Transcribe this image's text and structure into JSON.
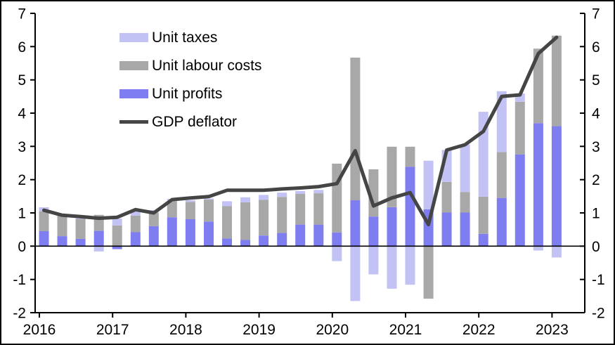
{
  "colors": {
    "unit_taxes": "#c2c2f4",
    "unit_labour_costs": "#a8a8a8",
    "unit_profits": "#7e7ef0",
    "gdp_deflator": "#454545",
    "axis": "#000000"
  },
  "legend": {
    "items": [
      {
        "label": "Unit taxes",
        "series": "unit_taxes",
        "type": "bar"
      },
      {
        "label": "Unit labour costs",
        "series": "unit_labour_costs",
        "type": "bar"
      },
      {
        "label": "Unit profits",
        "series": "unit_profits",
        "type": "bar"
      },
      {
        "label": "GDP deflator",
        "series": "gdp_deflator",
        "type": "line"
      }
    ]
  },
  "chart_data": {
    "type": "bar",
    "subtype": "stacked-bars-with-line",
    "categories": [
      "2016Q1",
      "2016Q2",
      "2016Q3",
      "2016Q4",
      "2017Q1",
      "2017Q2",
      "2017Q3",
      "2017Q4",
      "2018Q1",
      "2018Q2",
      "2018Q3",
      "2018Q4",
      "2019Q1",
      "2019Q2",
      "2019Q3",
      "2019Q4",
      "2020Q1",
      "2020Q2",
      "2020Q3",
      "2020Q4",
      "2021Q1",
      "2021Q2",
      "2021Q3",
      "2021Q4",
      "2022Q1",
      "2022Q2",
      "2022Q3",
      "2022Q4",
      "2023Q1"
    ],
    "series": [
      {
        "key": "unit_profits",
        "name": "Unit profits",
        "values": [
          0.45,
          0.3,
          0.22,
          0.46,
          -0.09,
          0.42,
          0.6,
          0.87,
          0.81,
          0.74,
          0.23,
          0.19,
          0.32,
          0.4,
          0.65,
          0.65,
          0.41,
          1.38,
          0.89,
          1.17,
          2.39,
          1.11,
          1.01,
          1.01,
          0.37,
          1.45,
          2.76,
          3.7,
          3.61
        ]
      },
      {
        "key": "unit_labour_costs",
        "name": "Unit labour costs",
        "values": [
          0.6,
          0.63,
          0.6,
          0.48,
          0.62,
          0.5,
          0.4,
          0.48,
          0.52,
          0.66,
          0.97,
          1.13,
          1.07,
          1.08,
          0.92,
          0.94,
          2.07,
          4.29,
          1.42,
          1.82,
          0.6,
          -1.58,
          0.92,
          0.62,
          1.12,
          1.38,
          1.58,
          2.24,
          2.72
        ]
      },
      {
        "key": "unit_taxes",
        "name": "Unit taxes",
        "values": [
          0.12,
          0.04,
          0.03,
          -0.16,
          0.21,
          0.14,
          0.08,
          0.07,
          0.05,
          0.03,
          0.15,
          0.15,
          0.15,
          0.13,
          0.09,
          0.1,
          -0.45,
          -1.65,
          -0.85,
          -1.28,
          -1.16,
          1.46,
          0.96,
          1.43,
          2.55,
          1.83,
          0.25,
          -0.13,
          -0.34
        ]
      }
    ],
    "line": {
      "key": "gdp_deflator",
      "name": "GDP deflator",
      "values": [
        1.08,
        0.93,
        0.89,
        0.84,
        0.87,
        1.1,
        1.0,
        1.4,
        1.45,
        1.49,
        1.68,
        1.68,
        1.68,
        1.72,
        1.75,
        1.79,
        1.88,
        2.87,
        1.21,
        1.45,
        1.61,
        0.65,
        2.89,
        3.05,
        3.45,
        4.5,
        4.55,
        5.79,
        6.28
      ]
    },
    "title": "",
    "xlabel": "",
    "ylabel": "",
    "ylim": [
      -2,
      7
    ],
    "yticks": [
      "7",
      "6",
      "5",
      "4",
      "3",
      "2",
      "1",
      "0",
      "-1",
      "-2"
    ],
    "ytick_values": [
      7,
      6,
      5,
      4,
      3,
      2,
      1,
      0,
      -1,
      -2
    ],
    "xticks": [
      "2016",
      "2017",
      "2018",
      "2019",
      "2020",
      "2021",
      "2022",
      "2023"
    ],
    "grid": false,
    "zero_line": true,
    "legend_position": "top-left",
    "dual_axis": true
  }
}
